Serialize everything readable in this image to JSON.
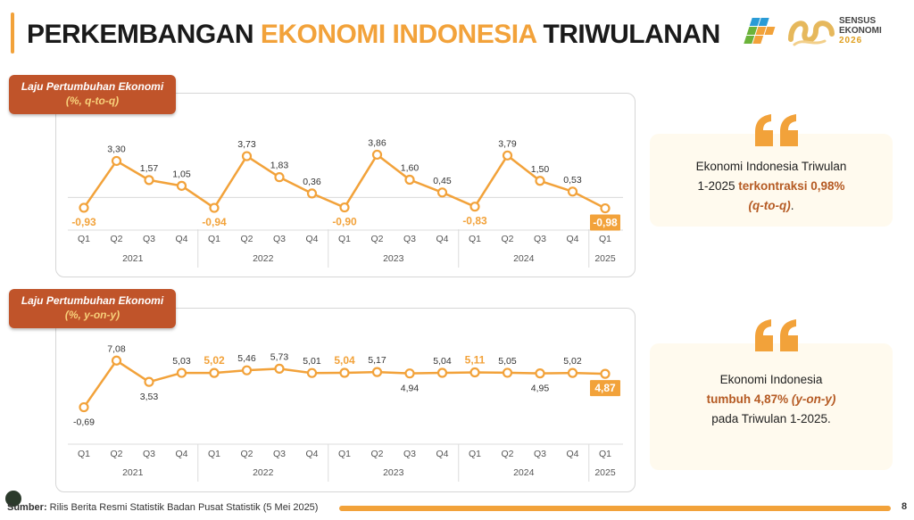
{
  "header": {
    "title_part1": "PERKEMBANGAN ",
    "title_part2": "EKONOMI INDONESIA",
    "title_part3": " TRIWULANAN",
    "logo_sensus_line1": "SENSUS",
    "logo_sensus_line2": "EKONOMI",
    "logo_sensus_line3": "2026"
  },
  "colors": {
    "accent": "#f2a23a",
    "label_bg": "#c0542a",
    "label_sub": "#f7d07a",
    "highlight": "#b55a23",
    "card_bg": "#fffaee"
  },
  "panel1": {
    "label_line1": "Laju Pertumbuhan Ekonomi",
    "label_line2": "(%, q-to-q)"
  },
  "panel2": {
    "label_line1": "Laju Pertumbuhan Ekonomi",
    "label_line2": "(%, y-on-y)"
  },
  "chart_data": [
    {
      "type": "line",
      "quarters": [
        "Q1",
        "Q2",
        "Q3",
        "Q4",
        "Q1",
        "Q2",
        "Q3",
        "Q4",
        "Q1",
        "Q2",
        "Q3",
        "Q4",
        "Q1",
        "Q2",
        "Q3",
        "Q4",
        "Q1"
      ],
      "years": [
        "2021",
        "2022",
        "2023",
        "2024",
        "2025"
      ],
      "year_spans": [
        4,
        4,
        4,
        4,
        1
      ],
      "values": [
        -0.93,
        3.3,
        1.57,
        1.05,
        -0.94,
        3.73,
        1.83,
        0.36,
        -0.9,
        3.86,
        1.6,
        0.45,
        -0.83,
        3.79,
        1.5,
        0.53,
        -0.98
      ],
      "labels": [
        "-0,93",
        "3,30",
        "1,57",
        "1,05",
        "-0,94",
        "3,73",
        "1,83",
        "0,36",
        "-0,90",
        "3,86",
        "1,60",
        "0,45",
        "-0,83",
        "3,79",
        "1,50",
        "0,53",
        "-0,98"
      ],
      "label_position": [
        "below",
        "above",
        "above",
        "above",
        "below",
        "above",
        "above",
        "above",
        "below",
        "above",
        "above",
        "above",
        "below",
        "above",
        "above",
        "above",
        "below"
      ],
      "highlight_orange": [
        0,
        4,
        8,
        12
      ],
      "highlight_boxed": [
        16
      ],
      "zero_line": true,
      "ylim": [
        -1.5,
        4.3
      ]
    },
    {
      "type": "line",
      "quarters": [
        "Q1",
        "Q2",
        "Q3",
        "Q4",
        "Q1",
        "Q2",
        "Q3",
        "Q4",
        "Q1",
        "Q2",
        "Q3",
        "Q4",
        "Q1",
        "Q2",
        "Q3",
        "Q4",
        "Q1"
      ],
      "years": [
        "2021",
        "2022",
        "2023",
        "2024",
        "2025"
      ],
      "year_spans": [
        4,
        4,
        4,
        4,
        1
      ],
      "values": [
        -0.69,
        7.08,
        3.53,
        5.03,
        5.02,
        5.46,
        5.73,
        5.01,
        5.04,
        5.17,
        4.94,
        5.04,
        5.11,
        5.05,
        4.95,
        5.02,
        4.87
      ],
      "labels": [
        "-0,69",
        "7,08",
        "3,53",
        "5,03",
        "5,02",
        "5,46",
        "5,73",
        "5,01",
        "5,04",
        "5,17",
        "4,94",
        "5,04",
        "5,11",
        "5,05",
        "4,95",
        "5,02",
        "4,87"
      ],
      "label_position": [
        "below",
        "above",
        "below",
        "above",
        "above",
        "above",
        "above",
        "above",
        "above",
        "above",
        "below",
        "above",
        "above",
        "above",
        "below",
        "above",
        "below"
      ],
      "highlight_orange": [
        4,
        8,
        12
      ],
      "highlight_boxed": [
        16
      ],
      "zero_line": false,
      "ylim": [
        -1.5,
        9.5
      ]
    }
  ],
  "card1": {
    "line1": "Ekonomi Indonesia Triwulan",
    "line2a": "1-2025 ",
    "line2b": "terkontraksi 0,98%",
    "line3": "(q-to-q)",
    "line3_end": "."
  },
  "card2": {
    "line1": "Ekonomi Indonesia",
    "line2a": "tumbuh 4,87% ",
    "line2b": "(y-on-y)",
    "line3": "pada Triwulan 1-2025."
  },
  "footer": {
    "source_label": "Sumber:",
    "source_text": " Rilis Berita Resmi Statistik Badan Pusat Statistik (5 Mei 2025)",
    "page_number": "8"
  }
}
